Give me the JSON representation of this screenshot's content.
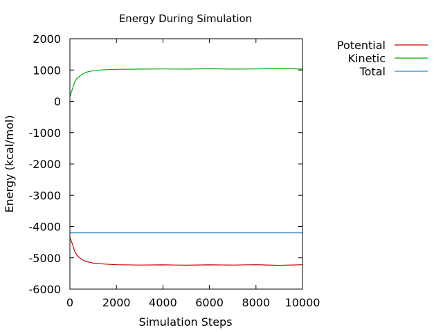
{
  "chart_data": {
    "type": "line",
    "title": "Energy During Simulation",
    "xlabel": "Simulation Steps",
    "ylabel": "Energy (kcal/mol)",
    "xlim": [
      0,
      10000
    ],
    "ylim": [
      -6000,
      2000
    ],
    "xticks": [
      0,
      2000,
      4000,
      6000,
      8000,
      10000
    ],
    "yticks": [
      -6000,
      -5000,
      -4000,
      -3000,
      -2000,
      -1000,
      0,
      1000,
      2000
    ],
    "grid": false,
    "legend_position": "top-right outside plot",
    "series": [
      {
        "name": "Potential",
        "color": "#cc0000",
        "x": [
          0,
          100,
          200,
          300,
          500,
          700,
          1000,
          1500,
          2000,
          3000,
          4000,
          5000,
          6000,
          7000,
          8000,
          9000,
          10000
        ],
        "y": [
          -4350,
          -4550,
          -4780,
          -4920,
          -5050,
          -5120,
          -5170,
          -5200,
          -5220,
          -5230,
          -5225,
          -5235,
          -5225,
          -5230,
          -5220,
          -5240,
          -5220
        ]
      },
      {
        "name": "Kinetic",
        "color": "#00aa00",
        "x": [
          0,
          100,
          200,
          300,
          500,
          700,
          1000,
          1500,
          2000,
          3000,
          4000,
          5000,
          6000,
          7000,
          8000,
          9000,
          10000
        ],
        "y": [
          150,
          380,
          600,
          730,
          850,
          930,
          980,
          1010,
          1020,
          1030,
          1035,
          1030,
          1040,
          1030,
          1035,
          1050,
          1030
        ]
      },
      {
        "name": "Total",
        "color": "#2a8abf",
        "x": [
          0,
          10000
        ],
        "y": [
          -4200,
          -4200
        ]
      }
    ]
  }
}
